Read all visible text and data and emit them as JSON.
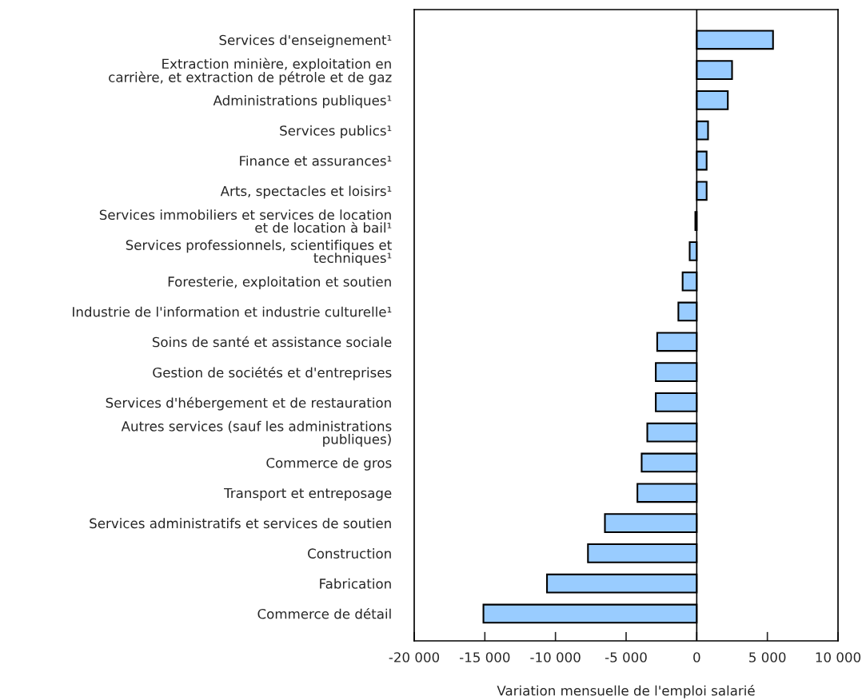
{
  "chart_data": {
    "type": "bar",
    "orientation": "horizontal",
    "xlabel": "Variation mensuelle de l'emploi salarié",
    "categories": [
      "Services d'enseignement¹",
      "Extraction minière, exploitation en\ncarrière, et extraction de pétrole et de gaz",
      "Administrations publiques¹",
      "Services publics¹",
      "Finance et assurances¹",
      "Arts, spectacles et loisirs¹",
      "Services immobiliers et services de location\net de location à bail¹",
      "Services professionnels, scientifiques et\ntechniques¹",
      "Foresterie, exploitation et soutien",
      "Industrie de l'information et industrie culturelle¹",
      "Soins de santé et assistance sociale",
      "Gestion de sociétés et d'entreprises",
      "Services d'hébergement et de restauration",
      "Autres services (sauf les administrations\npubliques)",
      "Commerce de gros",
      "Transport et entreposage",
      "Services administratifs et services de soutien",
      "Construction",
      "Fabrication",
      "Commerce de détail"
    ],
    "values": [
      5400,
      2500,
      2200,
      800,
      700,
      700,
      -100,
      -500,
      -1000,
      -1300,
      -2800,
      -2900,
      -2900,
      -3500,
      -3900,
      -4200,
      -6500,
      -7700,
      -10600,
      -15100
    ],
    "color": "#99ccff",
    "xlim": [
      -20000,
      10000
    ],
    "xticks": [
      {
        "value": -20000,
        "label": "-20 000"
      },
      {
        "value": -15000,
        "label": "-15 000"
      },
      {
        "value": -10000,
        "label": "-10 000"
      },
      {
        "value": -5000,
        "label": "-5 000"
      },
      0,
      {
        "value": 5000,
        "label": "5 000"
      },
      {
        "value": 10000,
        "label": "10 000"
      }
    ],
    "ref_lines": [
      {
        "axis": "x",
        "value": 0,
        "color": "#000000"
      }
    ],
    "grid": false,
    "legend": false
  }
}
